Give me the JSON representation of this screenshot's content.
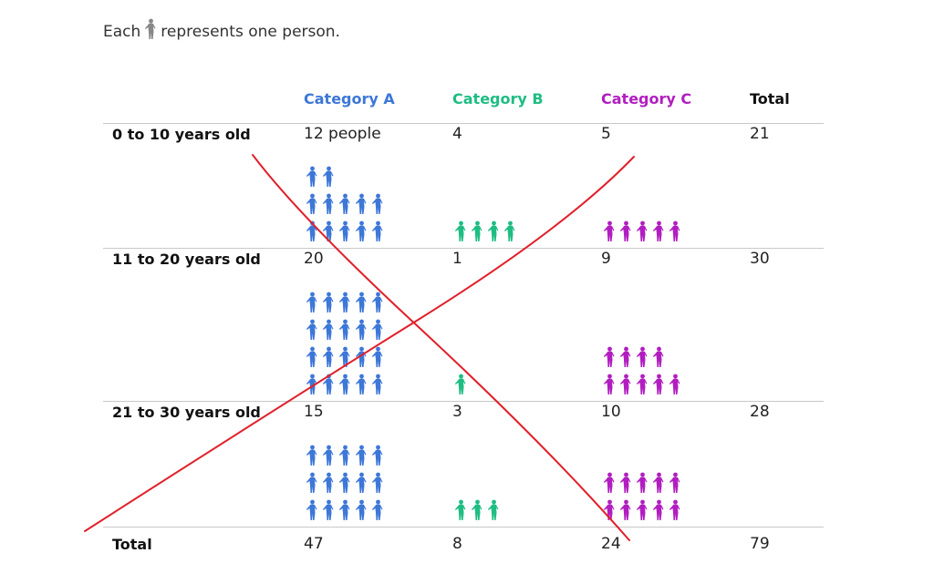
{
  "legend": {
    "before": "Each",
    "after": "represents one person.",
    "icon": "person-icon"
  },
  "colors": {
    "Category A": "#3d77d8",
    "Category B": "#1ebd82",
    "Category C": "#b11ec0",
    "legend_icon": "#888888",
    "annotation": "#e0202a"
  },
  "chart_data": {
    "type": "table",
    "title": "",
    "columns": [
      "Category A",
      "Category B",
      "Category C",
      "Total"
    ],
    "rows": [
      {
        "label": "0 to 10 years old",
        "values": [
          12,
          4,
          5
        ],
        "display": [
          "12 people",
          "4",
          "5"
        ],
        "total": "21"
      },
      {
        "label": "11 to 20 years old",
        "values": [
          20,
          1,
          9
        ],
        "display": [
          "20",
          "1",
          "9"
        ],
        "total": "30"
      },
      {
        "label": "21 to 30 years old",
        "values": [
          15,
          3,
          10
        ],
        "display": [
          "15",
          "3",
          "10"
        ],
        "total": "28"
      }
    ],
    "totals": {
      "label": "Total",
      "values": [
        "47",
        "8",
        "24"
      ],
      "total": "79"
    },
    "icons_per_row": 5,
    "annotation": "red hand-drawn X across table"
  }
}
